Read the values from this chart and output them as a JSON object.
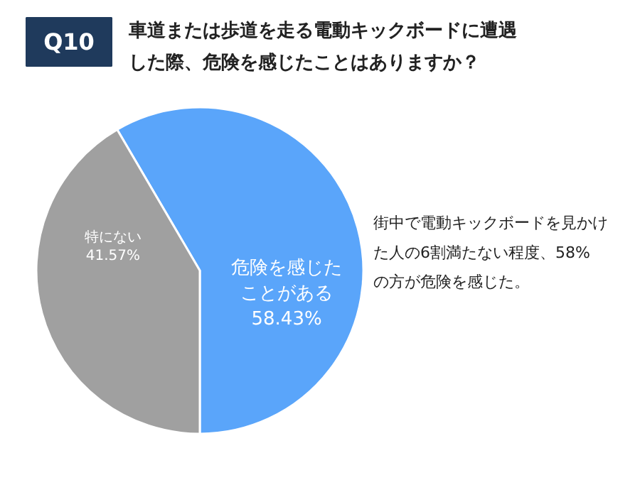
{
  "chart_data": {
    "type": "pie",
    "title": "Q10",
    "subtitle": "車道または歩道を走る電動キックボードに遭遇した際、危険を感じたことはありますか？",
    "categories": [
      "危険を感じたことがある",
      "特にない"
    ],
    "values": [
      58.43,
      41.57
    ],
    "colors": [
      "#5aa5fa",
      "#a0a0a0"
    ],
    "value_labels": [
      "58.43%",
      "41.57%"
    ],
    "annotations": [
      "街中で電動キックボードを見かけた人の6割満たない程度、58%の方が危険を感じた。"
    ]
  }
}
